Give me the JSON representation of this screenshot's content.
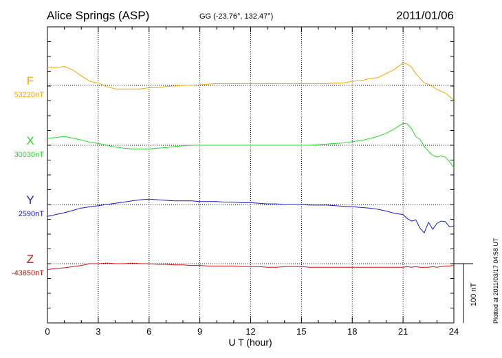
{
  "chart_data": {
    "type": "line",
    "title": "Alice Springs (ASP)",
    "coords": "GG (-23.76°, 132.47°)",
    "date": "2011/01/06",
    "xlabel": "U T (hour)",
    "xlim": [
      0,
      24
    ],
    "xticks": [
      0,
      3,
      6,
      9,
      12,
      15,
      18,
      21,
      24
    ],
    "xtick_labels": [
      "0",
      "3",
      "6",
      "9",
      "12",
      "15",
      "18",
      "21",
      "24"
    ],
    "grid": true,
    "scale_label": "100 nT",
    "footnote": "Plotted at 2011/03/17 04:58 UT",
    "series": [
      {
        "name": "F",
        "base_label": "53220nT",
        "color": "#f0a800",
        "x": [
          0,
          0.5,
          1,
          1.5,
          2,
          2.5,
          3,
          3.5,
          4,
          4.5,
          5,
          5.5,
          6,
          6.5,
          7,
          7.5,
          8,
          8.5,
          9,
          9.5,
          10,
          10.5,
          11,
          11.5,
          12,
          12.5,
          13,
          13.5,
          14,
          14.5,
          15,
          15.5,
          16,
          16.5,
          17,
          17.5,
          18,
          18.5,
          19,
          19.5,
          20,
          20.5,
          21,
          21.25,
          21.5,
          21.75,
          22,
          22.25,
          22.5,
          22.75,
          23,
          23.25,
          23.5,
          23.75,
          24
        ],
        "y": [
          30,
          30,
          32,
          26,
          16,
          7,
          4,
          -2,
          -6,
          -6,
          -6,
          -6,
          -4,
          -4,
          -2,
          -1,
          0,
          0,
          1,
          2,
          3,
          3,
          3,
          3,
          3,
          3,
          3,
          3,
          3,
          3,
          3,
          3,
          3,
          3,
          4,
          4,
          7,
          8,
          11,
          13,
          20,
          27,
          38,
          36,
          31,
          20,
          12,
          4,
          2,
          -2,
          -7,
          -10,
          -13,
          -19,
          -25
        ]
      },
      {
        "name": "X",
        "base_label": "30030nT",
        "color": "#22dd22",
        "x": [
          0,
          0.5,
          1,
          1.5,
          2,
          2.5,
          3,
          3.5,
          4,
          4.5,
          5,
          5.5,
          6,
          6.5,
          7,
          7.5,
          8,
          8.5,
          9,
          9.5,
          10,
          10.5,
          11,
          11.5,
          12,
          12.5,
          13,
          13.5,
          14,
          14.5,
          15,
          15.5,
          16,
          16.5,
          17,
          17.5,
          18,
          18.5,
          19,
          19.5,
          20,
          20.5,
          21,
          21.25,
          21.5,
          21.75,
          22,
          22.25,
          22.5,
          22.75,
          23,
          23.25,
          23.5,
          23.75,
          24
        ],
        "y": [
          12,
          13,
          15,
          12,
          9,
          5,
          3,
          0,
          -3,
          -5,
          -6,
          -6,
          -6,
          -5,
          -4,
          -2,
          -1,
          0,
          0,
          0,
          0,
          0,
          0,
          0,
          0,
          0,
          0,
          0,
          0,
          0,
          0,
          0,
          1,
          2,
          3,
          4,
          6,
          8,
          11,
          15,
          20,
          28,
          37,
          36,
          28,
          15,
          10,
          -2,
          -10,
          -17,
          -20,
          -18,
          -20,
          -28,
          -38
        ]
      },
      {
        "name": "Y",
        "base_label": "2590nT",
        "color": "#1a1acc",
        "x": [
          0,
          0.5,
          1,
          1.5,
          2,
          2.5,
          3,
          3.5,
          4,
          4.5,
          5,
          5.5,
          6,
          6.5,
          7,
          7.5,
          8,
          8.5,
          9,
          9.5,
          10,
          10.5,
          11,
          11.5,
          12,
          12.5,
          13,
          13.5,
          14,
          14.5,
          15,
          15.5,
          16,
          16.5,
          17,
          17.5,
          18,
          18.5,
          19,
          19.5,
          20,
          20.5,
          21,
          21.25,
          21.5,
          21.75,
          22,
          22.25,
          22.5,
          22.75,
          23,
          23.25,
          23.5,
          23.75,
          24
        ],
        "y": [
          -20,
          -17,
          -14,
          -10,
          -6,
          -4,
          -2,
          0,
          2,
          4,
          6,
          8,
          9,
          8,
          7,
          6,
          6,
          6,
          5,
          5,
          5,
          4,
          4,
          3,
          3,
          2,
          1,
          1,
          0,
          0,
          0,
          -1,
          -1,
          -1,
          -2,
          -3,
          -4,
          -5,
          -6,
          -8,
          -11,
          -15,
          -17,
          -24,
          -28,
          -26,
          -40,
          -48,
          -30,
          -42,
          -32,
          -28,
          -29,
          -38,
          -36
        ]
      },
      {
        "name": "Z",
        "base_label": "-43850nT",
        "color": "#cc1111",
        "x": [
          0,
          0.5,
          1,
          1.5,
          2,
          2.5,
          3,
          3.5,
          4,
          4.5,
          5,
          5.5,
          6,
          6.5,
          7,
          7.5,
          8,
          8.5,
          9,
          9.5,
          10,
          10.5,
          11,
          11.5,
          12,
          12.5,
          13,
          13.5,
          14,
          14.5,
          15,
          15.5,
          16,
          16.5,
          17,
          17.5,
          18,
          18.5,
          19,
          19.5,
          20,
          20.5,
          21,
          21.25,
          21.5,
          21.75,
          22,
          22.25,
          22.5,
          22.75,
          23,
          23.25,
          23.5,
          23.75,
          24
        ],
        "y": [
          -10,
          -8,
          -7,
          -5,
          -3,
          0,
          0,
          1,
          0,
          0,
          1,
          0,
          0,
          -1,
          -1,
          -2,
          -2,
          -3,
          -3,
          -4,
          -4,
          -4,
          -4,
          -5,
          -5,
          -5,
          -6,
          -6,
          -5,
          -5,
          -5,
          -6,
          -6,
          -6,
          -6,
          -6,
          -6,
          -6,
          -6,
          -6,
          -6,
          -6,
          -6,
          -5,
          -6,
          -5,
          -6,
          -6,
          -6,
          -5,
          -6,
          -5,
          -4,
          -4,
          -3
        ]
      }
    ]
  }
}
